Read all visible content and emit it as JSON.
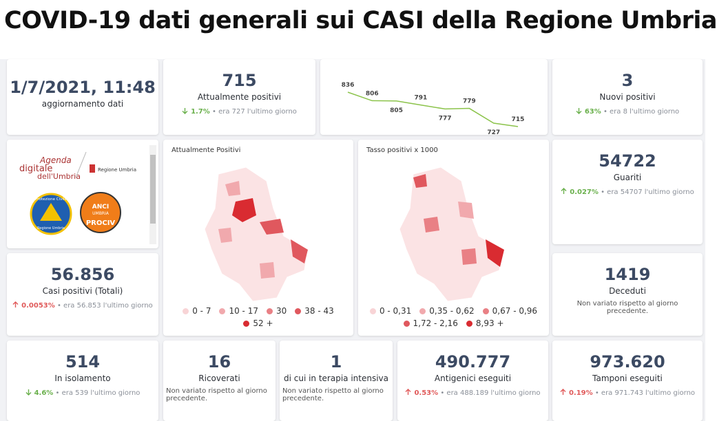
{
  "title": "COVID-19 dati generali sui CASI della Regione Umbria",
  "cards": [
    {
      "value": "1/7/2021, 11:48",
      "label": "aggiornamento dati"
    },
    {
      "value": "715",
      "label": "Attualmente positivi",
      "change": "1.7%",
      "trend": "down",
      "note": "era 727 l'ultimo giorno"
    },
    {
      "value": "3",
      "label": "Nuovi positivi",
      "change": "63%",
      "trend": "down",
      "note": "era 8 l'ultimo giorno"
    },
    {
      "value": "54722",
      "label": "Guariti",
      "change": "0.027%",
      "trend": "up-good",
      "note": "era 54707 l'ultimo giorno"
    },
    {
      "value": "56.856",
      "label": "Casi positivi (Totali)",
      "change": "0.0053%",
      "trend": "up",
      "note": "era 56.853 l'ultimo giorno"
    },
    {
      "value": "1419",
      "label": "Deceduti",
      "text": "Non variato rispetto al giorno precedente."
    },
    {
      "value": "514",
      "label": "In isolamento",
      "change": "4.6%",
      "trend": "down",
      "note": "era 539 l'ultimo giorno"
    },
    {
      "value": "16",
      "label": "Ricoverati",
      "text": "Non variato rispetto al giorno precedente."
    },
    {
      "value": "1",
      "label": "di cui in terapia intensiva",
      "text": "Non variato rispetto al giorno precedente."
    },
    {
      "value": "490.777",
      "label": "Antigenici eseguiti",
      "change": "0.53%",
      "trend": "up",
      "note": "era 488.189 l'ultimo giorno"
    },
    {
      "value": "973.620",
      "label": "Tamponi eseguiti",
      "change": "0.19%",
      "trend": "up",
      "note": "era 971.743 l'ultimo giorno"
    }
  ],
  "sparkline": {
    "type": "line",
    "values": [
      836,
      806,
      805,
      791,
      777,
      779,
      727,
      715
    ],
    "color": "#8bc34a"
  },
  "logos": {
    "agenda_1": "Agenda",
    "agenda_2": "digitale",
    "agenda_3": "dell'Umbria",
    "regione": "Regione Umbria",
    "protezione_1": "Protezione Civile",
    "protezione_2": "Regione Umbria",
    "anci_1": "ANCI",
    "anci_2": "UMBRIA",
    "anci_3": "PROCIV"
  },
  "maps": [
    {
      "title": "Attualmente Positivi",
      "legend": [
        {
          "label": "0 - 7",
          "color": "#f8d4d6"
        },
        {
          "label": "10 - 17",
          "color": "#f1a9ad"
        },
        {
          "label": "30",
          "color": "#e98085"
        },
        {
          "label": "38 - 43",
          "color": "#e0585e"
        },
        {
          "label": "52 +",
          "color": "#d92b31"
        }
      ]
    },
    {
      "title": "Tasso positivi x 1000",
      "legend": [
        {
          "label": "0 - 0,31",
          "color": "#f8d4d6"
        },
        {
          "label": "0,35 - 0,62",
          "color": "#f1a9ad"
        },
        {
          "label": "0,67 - 0,96",
          "color": "#e98085"
        },
        {
          "label": "1,72 - 2,16",
          "color": "#e0585e"
        },
        {
          "label": "8,93 +",
          "color": "#d92b31"
        }
      ]
    }
  ]
}
